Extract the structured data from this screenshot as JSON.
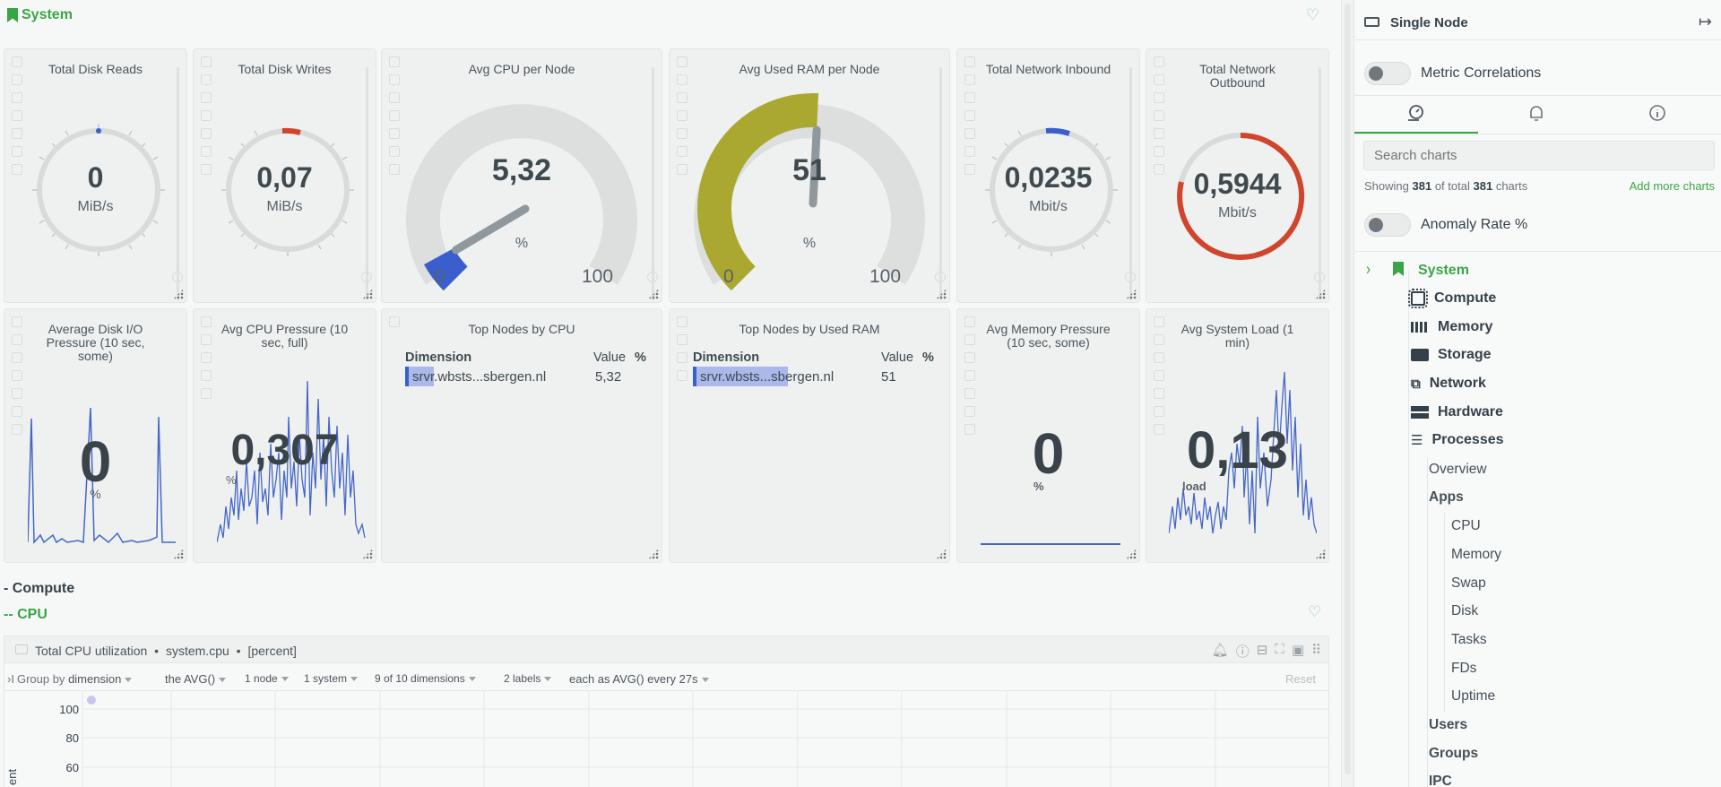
{
  "section": {
    "title": "System"
  },
  "cards_row1": [
    {
      "title": "Total Disk Reads",
      "value": "0",
      "unit": "MiB/s"
    },
    {
      "title": "Total Disk Writes",
      "value": "0,07",
      "unit": "MiB/s"
    },
    {
      "title": "Avg CPU per Node",
      "value": "5,32",
      "unit": "%",
      "min": "0",
      "max": "100",
      "fraction": 0.0532
    },
    {
      "title": "Avg Used RAM per Node",
      "value": "51",
      "unit": "%",
      "min": "0",
      "max": "100",
      "fraction": 0.51
    },
    {
      "title": "Total Network Inbound",
      "value": "0,0235",
      "unit": "Mbit/s"
    },
    {
      "title_line1": "Total Network",
      "title_line2": "Outbound",
      "value": "0,5944",
      "unit": "Mbit/s"
    }
  ],
  "cards_row2": [
    {
      "title_line1": "Average Disk I/O",
      "title_line2": "Pressure (10 sec,",
      "title_line3": "some)",
      "value": "0",
      "unit": "%"
    },
    {
      "title_line1": "Avg CPU Pressure (10",
      "title_line2": "sec, full)",
      "value": "0,307",
      "unit": "%"
    },
    {
      "title": "Top Nodes by CPU",
      "col_dimension": "Dimension",
      "col_value": "Value",
      "col_unit": "%",
      "row_name": "srvr.wbsts...sbergen.nl",
      "row_value": "5,32"
    },
    {
      "title": "Top Nodes by Used RAM",
      "col_dimension": "Dimension",
      "col_value": "Value",
      "col_unit": "%",
      "row_name": "srvr.wbsts...sbergen.nl",
      "row_value": "51"
    },
    {
      "title_line1": "Avg Memory Pressure",
      "title_line2": "(10 sec, some)",
      "value": "0",
      "unit": "%"
    },
    {
      "title_line1": "Avg System Load (1",
      "title_line2": "min)",
      "value": "0,13",
      "unit": "load"
    }
  ],
  "compute": {
    "heading": "- Compute",
    "cpu_heading": "-- CPU"
  },
  "cpu_chart": {
    "title": "Total CPU utilization",
    "context": "system.cpu",
    "units": "[percent]",
    "group_by_prefix": "Group by",
    "group_by_value": "dimension",
    "aggregate": "the AVG()",
    "nodes": "1 node",
    "systems": "1 system",
    "dimensions": "9 of 10 dimensions",
    "labels": "2 labels",
    "each_as": "each as AVG() every 27s",
    "reset": "Reset",
    "y_ticks": [
      "100",
      "80",
      "60"
    ],
    "y_label": "ent"
  },
  "sidebar": {
    "node_label": "Single Node",
    "metric_correlations": "Metric Correlations",
    "search_placeholder": "Search charts",
    "showing_prefix": "Showing",
    "showing_count": "381",
    "showing_mid": "of total",
    "showing_total": "381",
    "showing_suffix": "charts",
    "add_more": "Add more charts",
    "anomaly_rate": "Anomaly Rate %",
    "tree_root": "System",
    "tree_items": [
      "Compute",
      "Memory",
      "Storage",
      "Network",
      "Hardware",
      "Processes"
    ],
    "proc_children": [
      "Overview",
      "Apps"
    ],
    "apps_children": [
      "CPU",
      "Memory",
      "Swap",
      "Disk",
      "Tasks",
      "FDs",
      "Uptime"
    ],
    "more_items": [
      "Users",
      "Groups",
      "IPC"
    ]
  },
  "colors": {
    "accent": "#3aa546",
    "blue": "#3a5fcd",
    "red": "#d0452b",
    "olive": "#aaa830",
    "spark": "#4566c8"
  }
}
